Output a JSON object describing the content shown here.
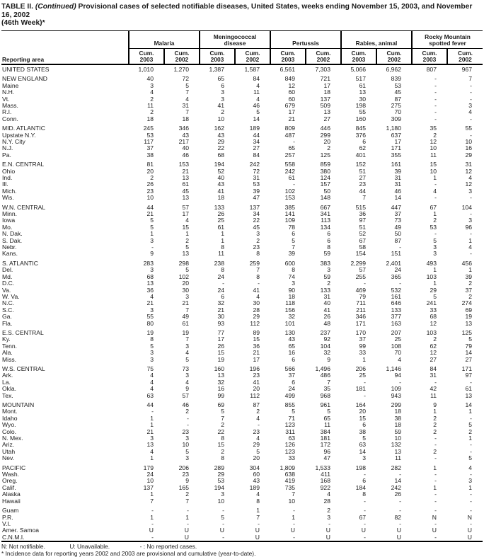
{
  "title": {
    "table_label": "TABLE II.",
    "continued": "(Continued)",
    "text": "Provisional cases of selected notifiable diseases, United States, weeks ending November 15, 2003, and November 16, 2002",
    "week": "(46th Week)*"
  },
  "header": {
    "reporting_area": "Reporting area",
    "groups": [
      {
        "label": "Malaria"
      },
      {
        "label": "Meningococcal disease"
      },
      {
        "label": "Pertussis"
      },
      {
        "label": "Rabies, animal"
      },
      {
        "label": "Rocky Mountain spotted fever"
      }
    ],
    "sub_label": "Cum.",
    "years": [
      "2003",
      "2002"
    ]
  },
  "sections": [
    {
      "rows": [
        [
          "UNITED STATES",
          "1,010",
          "1,270",
          "1,387",
          "1,587",
          "6,561",
          "7,303",
          "5,066",
          "6,962",
          "807",
          "967"
        ]
      ]
    },
    {
      "rows": [
        [
          "NEW ENGLAND",
          "40",
          "72",
          "65",
          "84",
          "849",
          "721",
          "517",
          "839",
          "-",
          "7"
        ],
        [
          "Maine",
          "3",
          "5",
          "6",
          "4",
          "12",
          "17",
          "61",
          "53",
          "-",
          "-"
        ],
        [
          "N.H.",
          "4",
          "7",
          "3",
          "11",
          "60",
          "18",
          "13",
          "45",
          "-",
          "-"
        ],
        [
          "Vt.",
          "2",
          "4",
          "3",
          "4",
          "60",
          "137",
          "30",
          "87",
          "-",
          "-"
        ],
        [
          "Mass.",
          "11",
          "31",
          "41",
          "46",
          "679",
          "509",
          "198",
          "275",
          "-",
          "3"
        ],
        [
          "R.I.",
          "2",
          "7",
          "2",
          "5",
          "17",
          "13",
          "55",
          "70",
          "-",
          "4"
        ],
        [
          "Conn.",
          "18",
          "18",
          "10",
          "14",
          "21",
          "27",
          "160",
          "309",
          "-",
          "-"
        ]
      ]
    },
    {
      "rows": [
        [
          "MID. ATLANTIC",
          "245",
          "346",
          "162",
          "189",
          "809",
          "446",
          "845",
          "1,180",
          "35",
          "55"
        ],
        [
          "Upstate N.Y.",
          "53",
          "43",
          "43",
          "44",
          "487",
          "299",
          "376",
          "637",
          "2",
          "-"
        ],
        [
          "N.Y. City",
          "117",
          "217",
          "29",
          "34",
          "-",
          "20",
          "6",
          "17",
          "12",
          "10"
        ],
        [
          "N.J.",
          "37",
          "40",
          "22",
          "27",
          "65",
          "2",
          "62",
          "171",
          "10",
          "16"
        ],
        [
          "Pa.",
          "38",
          "46",
          "68",
          "84",
          "257",
          "125",
          "401",
          "355",
          "11",
          "29"
        ]
      ]
    },
    {
      "rows": [
        [
          "E.N. CENTRAL",
          "81",
          "153",
          "194",
          "242",
          "558",
          "859",
          "152",
          "161",
          "15",
          "31"
        ],
        [
          "Ohio",
          "20",
          "21",
          "52",
          "72",
          "242",
          "380",
          "51",
          "39",
          "10",
          "12"
        ],
        [
          "Ind.",
          "2",
          "13",
          "40",
          "31",
          "61",
          "124",
          "27",
          "31",
          "1",
          "4"
        ],
        [
          "Ill.",
          "26",
          "61",
          "43",
          "53",
          "-",
          "157",
          "23",
          "31",
          "-",
          "12"
        ],
        [
          "Mich.",
          "23",
          "45",
          "41",
          "39",
          "102",
          "50",
          "44",
          "46",
          "4",
          "3"
        ],
        [
          "Wis.",
          "10",
          "13",
          "18",
          "47",
          "153",
          "148",
          "7",
          "14",
          "-",
          "-"
        ]
      ]
    },
    {
      "rows": [
        [
          "W.N. CENTRAL",
          "44",
          "57",
          "133",
          "137",
          "385",
          "667",
          "515",
          "447",
          "67",
          "104"
        ],
        [
          "Minn.",
          "21",
          "17",
          "26",
          "34",
          "141",
          "341",
          "36",
          "37",
          "1",
          "-"
        ],
        [
          "Iowa",
          "5",
          "4",
          "25",
          "22",
          "109",
          "113",
          "97",
          "73",
          "2",
          "3"
        ],
        [
          "Mo.",
          "5",
          "15",
          "61",
          "45",
          "78",
          "134",
          "51",
          "49",
          "53",
          "96"
        ],
        [
          "N. Dak.",
          "1",
          "1",
          "1",
          "3",
          "6",
          "6",
          "52",
          "50",
          "-",
          "-"
        ],
        [
          "S. Dak.",
          "3",
          "2",
          "1",
          "2",
          "5",
          "6",
          "67",
          "87",
          "5",
          "1"
        ],
        [
          "Nebr.",
          "-",
          "5",
          "8",
          "23",
          "7",
          "8",
          "58",
          "-",
          "3",
          "4"
        ],
        [
          "Kans.",
          "9",
          "13",
          "11",
          "8",
          "39",
          "59",
          "154",
          "151",
          "3",
          "-"
        ]
      ]
    },
    {
      "rows": [
        [
          "S. ATLANTIC",
          "283",
          "298",
          "238",
          "259",
          "600",
          "383",
          "2,299",
          "2,401",
          "493",
          "456"
        ],
        [
          "Del.",
          "3",
          "5",
          "8",
          "7",
          "8",
          "3",
          "57",
          "24",
          "1",
          "1"
        ],
        [
          "Md.",
          "68",
          "102",
          "24",
          "8",
          "74",
          "59",
          "255",
          "365",
          "103",
          "39"
        ],
        [
          "D.C.",
          "13",
          "20",
          "-",
          "-",
          "3",
          "2",
          "-",
          "-",
          "1",
          "2"
        ],
        [
          "Va.",
          "36",
          "30",
          "24",
          "41",
          "90",
          "133",
          "469",
          "532",
          "29",
          "37"
        ],
        [
          "W. Va.",
          "4",
          "3",
          "6",
          "4",
          "18",
          "31",
          "79",
          "161",
          "5",
          "2"
        ],
        [
          "N.C.",
          "21",
          "21",
          "32",
          "30",
          "118",
          "40",
          "711",
          "646",
          "241",
          "274"
        ],
        [
          "S.C.",
          "3",
          "7",
          "21",
          "28",
          "156",
          "41",
          "211",
          "133",
          "33",
          "69"
        ],
        [
          "Ga.",
          "55",
          "49",
          "30",
          "29",
          "32",
          "26",
          "346",
          "377",
          "68",
          "19"
        ],
        [
          "Fla.",
          "80",
          "61",
          "93",
          "112",
          "101",
          "48",
          "171",
          "163",
          "12",
          "13"
        ]
      ]
    },
    {
      "rows": [
        [
          "E.S. CENTRAL",
          "19",
          "19",
          "77",
          "89",
          "130",
          "237",
          "170",
          "207",
          "103",
          "125"
        ],
        [
          "Ky.",
          "8",
          "7",
          "17",
          "15",
          "43",
          "92",
          "37",
          "25",
          "2",
          "5"
        ],
        [
          "Tenn.",
          "5",
          "3",
          "26",
          "36",
          "65",
          "104",
          "99",
          "108",
          "62",
          "79"
        ],
        [
          "Ala.",
          "3",
          "4",
          "15",
          "21",
          "16",
          "32",
          "33",
          "70",
          "12",
          "14"
        ],
        [
          "Miss.",
          "3",
          "5",
          "19",
          "17",
          "6",
          "9",
          "1",
          "4",
          "27",
          "27"
        ]
      ]
    },
    {
      "rows": [
        [
          "W.S. CENTRAL",
          "75",
          "73",
          "160",
          "196",
          "566",
          "1,496",
          "206",
          "1,146",
          "84",
          "171"
        ],
        [
          "Ark.",
          "4",
          "3",
          "13",
          "23",
          "37",
          "486",
          "25",
          "94",
          "31",
          "97"
        ],
        [
          "La.",
          "4",
          "4",
          "32",
          "41",
          "6",
          "7",
          "-",
          "-",
          "-",
          "-"
        ],
        [
          "Okla.",
          "4",
          "9",
          "16",
          "20",
          "24",
          "35",
          "181",
          "109",
          "42",
          "61"
        ],
        [
          "Tex.",
          "63",
          "57",
          "99",
          "112",
          "499",
          "968",
          "-",
          "943",
          "11",
          "13"
        ]
      ]
    },
    {
      "rows": [
        [
          "MOUNTAIN",
          "44",
          "46",
          "69",
          "87",
          "855",
          "961",
          "164",
          "299",
          "9",
          "14"
        ],
        [
          "Mont.",
          "-",
          "2",
          "5",
          "2",
          "5",
          "5",
          "20",
          "18",
          "1",
          "1"
        ],
        [
          "Idaho",
          "1",
          "-",
          "7",
          "4",
          "71",
          "65",
          "15",
          "38",
          "2",
          "-"
        ],
        [
          "Wyo.",
          "1",
          "-",
          "2",
          "-",
          "123",
          "11",
          "6",
          "18",
          "2",
          "5"
        ],
        [
          "Colo.",
          "21",
          "23",
          "22",
          "23",
          "311",
          "384",
          "38",
          "59",
          "2",
          "2"
        ],
        [
          "N. Mex.",
          "3",
          "3",
          "8",
          "4",
          "63",
          "181",
          "5",
          "10",
          "-",
          "1"
        ],
        [
          "Ariz.",
          "13",
          "10",
          "15",
          "29",
          "126",
          "172",
          "63",
          "132",
          "-",
          "-"
        ],
        [
          "Utah",
          "4",
          "5",
          "2",
          "5",
          "123",
          "96",
          "14",
          "13",
          "2",
          "-"
        ],
        [
          "Nev.",
          "1",
          "3",
          "8",
          "20",
          "33",
          "47",
          "3",
          "11",
          "-",
          "5"
        ]
      ]
    },
    {
      "rows": [
        [
          "PACIFIC",
          "179",
          "206",
          "289",
          "304",
          "1,809",
          "1,533",
          "198",
          "282",
          "1",
          "4"
        ],
        [
          "Wash.",
          "24",
          "23",
          "29",
          "60",
          "638",
          "411",
          "-",
          "-",
          "-",
          "-"
        ],
        [
          "Oreg.",
          "10",
          "9",
          "53",
          "43",
          "419",
          "168",
          "6",
          "14",
          "-",
          "3"
        ],
        [
          "Calif.",
          "137",
          "165",
          "194",
          "189",
          "735",
          "922",
          "184",
          "242",
          "1",
          "1"
        ],
        [
          "Alaska",
          "1",
          "2",
          "3",
          "4",
          "7",
          "4",
          "8",
          "26",
          "-",
          "-"
        ],
        [
          "Hawaii",
          "7",
          "7",
          "10",
          "8",
          "10",
          "28",
          "-",
          "-",
          "-",
          "-"
        ]
      ]
    },
    {
      "rows": [
        [
          "Guam",
          "-",
          "-",
          "-",
          "1",
          "-",
          "2",
          "-",
          "-",
          "-",
          "-"
        ],
        [
          "P.R.",
          "1",
          "1",
          "5",
          "7",
          "1",
          "3",
          "67",
          "82",
          "N",
          "N"
        ],
        [
          "V.I.",
          "-",
          "-",
          "-",
          "-",
          "-",
          "-",
          "-",
          "-",
          "-",
          "-"
        ],
        [
          "Amer. Samoa",
          "U",
          "U",
          "U",
          "U",
          "U",
          "U",
          "U",
          "U",
          "U",
          "U"
        ],
        [
          "C.N.M.I.",
          "-",
          "U",
          "-",
          "U",
          "-",
          "U",
          "-",
          "U",
          "-",
          "U"
        ]
      ]
    }
  ],
  "footnotes": {
    "legend": [
      "N: Not notifiable.",
      "U: Unavailable.",
      "- : No reported cases."
    ],
    "note": "* Incidence data for reporting years 2002 and 2003 are provisional and cumulative (year-to-date)."
  }
}
